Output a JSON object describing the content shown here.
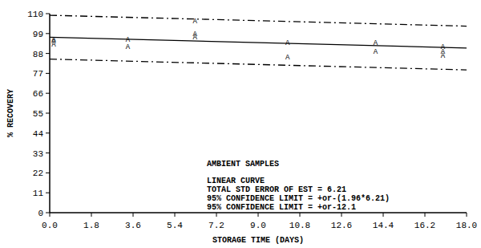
{
  "chart_data": {
    "type": "scatter",
    "x_label": "STORAGE TIME (DAYS)",
    "y_label": "% RECOVERY",
    "annotations": [
      "AMBIENT SAMPLES",
      "LINEAR CURVE",
      "TOTAL STD ERROR OF EST = 6.21",
      "95% CONFIDENCE LIMIT = +or-(1.96*6.21)",
      "95% CONFIDENCE LIMIT = +or-12.1"
    ],
    "xlim": [
      0,
      18
    ],
    "ylim": [
      0,
      110
    ],
    "xticks": [
      {
        "value": 0,
        "label": "0.0"
      },
      1.8,
      3.6,
      5.4,
      7.2,
      {
        "value": 9,
        "label": "9.0"
      },
      10.8,
      12.6,
      14.4,
      16.2,
      {
        "value": 18,
        "label": "18.0"
      }
    ],
    "yticks": [
      0,
      11,
      22,
      33,
      44,
      55,
      66,
      77,
      88,
      99,
      110
    ],
    "grid": false,
    "color": "#000000",
    "series": [
      {
        "type": "scatter",
        "marker": "A",
        "x": [
          0,
          0,
          0,
          3.2,
          3.2,
          6.1,
          6.1,
          6.1,
          10.1,
          10.1,
          13.9,
          13.9,
          16.8,
          16.8,
          16.8
        ],
        "values": [
          96,
          95,
          93,
          96,
          92,
          106,
          99,
          97,
          94,
          86,
          94,
          89,
          92,
          89,
          87
        ]
      },
      {
        "type": "line",
        "line_style": "solid",
        "x": [
          0,
          18
        ],
        "values": [
          97,
          91
        ]
      },
      {
        "type": "line",
        "line_style": "dashed",
        "x": [
          0,
          18
        ],
        "values": [
          109.1,
          103.1
        ]
      },
      {
        "type": "line",
        "line_style": "dashed",
        "x": [
          0,
          18
        ],
        "values": [
          84.9,
          78.9
        ]
      }
    ]
  }
}
